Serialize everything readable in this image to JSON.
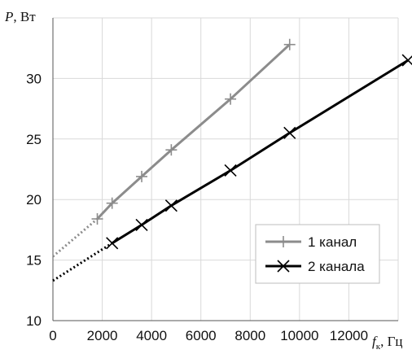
{
  "chart_data": {
    "type": "line",
    "title": "",
    "ylabel": {
      "symbol": "P",
      "unit": ", Вт"
    },
    "xlabel": {
      "symbol": "f",
      "subscript": "к",
      "unit": ", Гц"
    },
    "xlim": [
      0,
      14000
    ],
    "ylim": [
      10,
      35
    ],
    "x_ticks": [
      0,
      2000,
      4000,
      6000,
      8000,
      10000,
      12000
    ],
    "y_ticks": [
      10,
      15,
      20,
      25,
      30
    ],
    "grid": true,
    "legend_position": "bottom-right",
    "series": [
      {
        "name": "1 канал",
        "color": "#8c8c8c",
        "marker": "plus",
        "x": [
          1800,
          2400,
          3600,
          4800,
          7200,
          9600
        ],
        "y": [
          18.4,
          19.7,
          21.9,
          24.1,
          28.3,
          32.8
        ],
        "extrapolation": {
          "x": [
            0,
            1800
          ],
          "y": [
            15.3,
            18.4
          ],
          "style": "dotted"
        }
      },
      {
        "name": "2 канала",
        "color": "#000000",
        "marker": "x",
        "x": [
          2400,
          3600,
          4800,
          7200,
          9600,
          14400
        ],
        "y": [
          16.4,
          17.9,
          19.5,
          22.4,
          25.5,
          31.5
        ],
        "extrapolation": {
          "x": [
            0,
            2400
          ],
          "y": [
            13.3,
            16.4
          ],
          "style": "dotted"
        }
      }
    ]
  }
}
